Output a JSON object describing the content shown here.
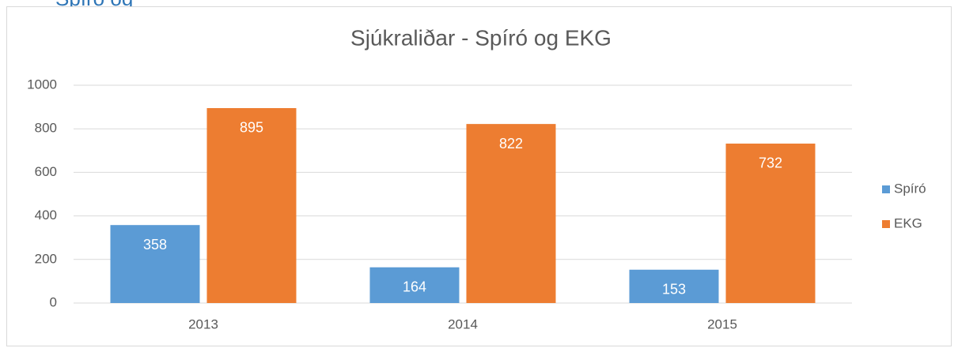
{
  "header": "Spíró og",
  "chart_data": {
    "type": "bar",
    "title": "Sjúkraliðar - Spíró og EKG",
    "categories": [
      "2013",
      "2014",
      "2015"
    ],
    "series": [
      {
        "name": "Spíró",
        "color": "#5b9bd5",
        "values": [
          358,
          164,
          153
        ]
      },
      {
        "name": "EKG",
        "color": "#ed7d31",
        "values": [
          895,
          822,
          732
        ]
      }
    ],
    "ylim": [
      0,
      1000
    ],
    "yticks": [
      0,
      200,
      400,
      600,
      800,
      1000
    ],
    "grid": true,
    "legend": "right"
  }
}
